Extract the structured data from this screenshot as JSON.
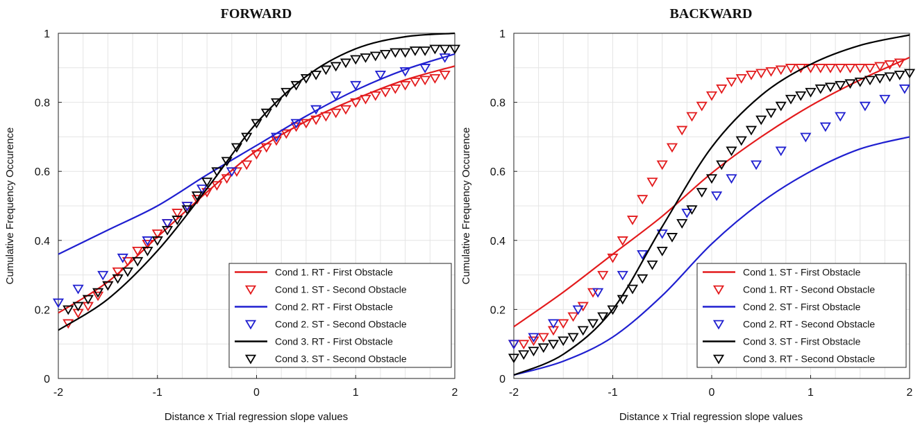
{
  "chart_data": [
    {
      "type": "line",
      "title": "FORWARD",
      "xlabel": "Distance x Trial regression slope values",
      "ylabel": "Cumulative Frequency Occurence",
      "xlim": [
        -2,
        2
      ],
      "ylim": [
        0,
        1
      ],
      "xticks": [
        -2,
        -1,
        0,
        1,
        2
      ],
      "yticks": [
        0,
        0.2,
        0.4,
        0.6,
        0.8,
        1
      ],
      "xtick_labels": [
        "-2",
        "-1",
        "0",
        "1",
        "2"
      ],
      "ytick_labels": [
        "0",
        "0.2",
        "0.4",
        "0.6",
        "0.8",
        "1"
      ],
      "grid": true,
      "legend_position": "bottom-right",
      "series": [
        {
          "name": "Cond 1. RT - First Obstacle",
          "kind": "line",
          "color": "#e31a1c",
          "x": [
            -2,
            -1.5,
            -1,
            -0.5,
            0,
            0.5,
            1,
            1.5,
            2
          ],
          "y": [
            0.19,
            0.28,
            0.41,
            0.54,
            0.66,
            0.745,
            0.81,
            0.865,
            0.905
          ]
        },
        {
          "name": "Cond 1. ST - Second Obstacle",
          "kind": "marker",
          "color": "#e31a1c",
          "x": [
            -1.9,
            -1.8,
            -1.7,
            -1.6,
            -1.5,
            -1.4,
            -1.3,
            -1.2,
            -1.1,
            -1.0,
            -0.9,
            -0.8,
            -0.7,
            -0.6,
            -0.5,
            -0.4,
            -0.3,
            -0.2,
            -0.1,
            0.0,
            0.1,
            0.2,
            0.3,
            0.4,
            0.5,
            0.6,
            0.7,
            0.8,
            0.9,
            1.0,
            1.1,
            1.2,
            1.3,
            1.4,
            1.5,
            1.6,
            1.7,
            1.8,
            1.9
          ],
          "y": [
            0.16,
            0.19,
            0.21,
            0.24,
            0.27,
            0.31,
            0.34,
            0.37,
            0.39,
            0.42,
            0.45,
            0.48,
            0.5,
            0.52,
            0.54,
            0.56,
            0.58,
            0.6,
            0.62,
            0.65,
            0.67,
            0.69,
            0.71,
            0.73,
            0.74,
            0.75,
            0.76,
            0.77,
            0.78,
            0.8,
            0.81,
            0.82,
            0.83,
            0.84,
            0.85,
            0.86,
            0.865,
            0.87,
            0.88
          ]
        },
        {
          "name": "Cond 2. RT - First Obstacle",
          "kind": "line",
          "color": "#1f1fd0",
          "x": [
            -2,
            -1.5,
            -1,
            -0.5,
            0,
            0.5,
            1,
            1.5,
            2
          ],
          "y": [
            0.36,
            0.43,
            0.5,
            0.59,
            0.675,
            0.76,
            0.835,
            0.895,
            0.94
          ]
        },
        {
          "name": "Cond 2. ST - Second Obstacle",
          "kind": "marker",
          "color": "#1f1fd0",
          "x": [
            -2.0,
            -1.8,
            -1.55,
            -1.35,
            -1.1,
            -0.9,
            -0.7,
            -0.55,
            -0.25,
            0.2,
            0.4,
            0.6,
            0.8,
            1.0,
            1.25,
            1.5,
            1.7,
            1.9
          ],
          "y": [
            0.22,
            0.26,
            0.3,
            0.35,
            0.4,
            0.45,
            0.5,
            0.55,
            0.6,
            0.7,
            0.74,
            0.78,
            0.82,
            0.85,
            0.88,
            0.89,
            0.9,
            0.93
          ]
        },
        {
          "name": "Cond 3. RT - First Obstacle",
          "kind": "line",
          "color": "#000000",
          "x": [
            -2,
            -1.5,
            -1,
            -0.5,
            0,
            0.5,
            1,
            1.5,
            2
          ],
          "y": [
            0.14,
            0.23,
            0.37,
            0.55,
            0.74,
            0.875,
            0.955,
            0.99,
            1.0
          ]
        },
        {
          "name": "Cond 3. ST - Second Obstacle",
          "kind": "marker",
          "color": "#000000",
          "x": [
            -1.9,
            -1.8,
            -1.7,
            -1.6,
            -1.5,
            -1.4,
            -1.3,
            -1.2,
            -1.1,
            -1.0,
            -0.9,
            -0.8,
            -0.7,
            -0.6,
            -0.5,
            -0.4,
            -0.3,
            -0.2,
            -0.1,
            0.0,
            0.1,
            0.2,
            0.3,
            0.4,
            0.5,
            0.6,
            0.7,
            0.8,
            0.9,
            1.0,
            1.1,
            1.2,
            1.3,
            1.4,
            1.5,
            1.6,
            1.7,
            1.8,
            1.9,
            2.0
          ],
          "y": [
            0.2,
            0.21,
            0.23,
            0.25,
            0.27,
            0.29,
            0.31,
            0.34,
            0.37,
            0.4,
            0.43,
            0.46,
            0.49,
            0.53,
            0.57,
            0.6,
            0.63,
            0.67,
            0.7,
            0.74,
            0.77,
            0.8,
            0.83,
            0.85,
            0.87,
            0.88,
            0.895,
            0.905,
            0.915,
            0.925,
            0.93,
            0.935,
            0.94,
            0.945,
            0.945,
            0.95,
            0.95,
            0.955,
            0.955,
            0.955
          ]
        }
      ]
    },
    {
      "type": "line",
      "title": "BACKWARD",
      "xlabel": "Distance x Trial regression slope values",
      "ylabel": "Cumulative Frequency Occurence",
      "xlim": [
        -2,
        2
      ],
      "ylim": [
        0,
        1
      ],
      "xticks": [
        -2,
        -1,
        0,
        1,
        2
      ],
      "yticks": [
        0,
        0.2,
        0.4,
        0.6,
        0.8,
        1
      ],
      "xtick_labels": [
        "-2",
        "-1",
        "0",
        "1",
        "2"
      ],
      "ytick_labels": [
        "0",
        "0.2",
        "0.4",
        "0.6",
        "0.8",
        "1"
      ],
      "grid": true,
      "legend_position": "bottom-right",
      "series": [
        {
          "name": "Cond 1. ST - First Obstacle",
          "kind": "line",
          "color": "#e31a1c",
          "x": [
            -2,
            -1.5,
            -1,
            -0.5,
            0,
            0.5,
            1,
            1.5,
            2
          ],
          "y": [
            0.15,
            0.25,
            0.36,
            0.47,
            0.595,
            0.7,
            0.79,
            0.865,
            0.93
          ]
        },
        {
          "name": "Cond 1. RT - Second Obstacle",
          "kind": "marker",
          "color": "#e31a1c",
          "x": [
            -2.0,
            -1.9,
            -1.8,
            -1.7,
            -1.6,
            -1.5,
            -1.4,
            -1.3,
            -1.2,
            -1.1,
            -1.0,
            -0.9,
            -0.8,
            -0.7,
            -0.6,
            -0.5,
            -0.4,
            -0.3,
            -0.2,
            -0.1,
            0.0,
            0.1,
            0.2,
            0.3,
            0.4,
            0.5,
            0.6,
            0.7,
            0.8,
            0.9,
            1.0,
            1.1,
            1.2,
            1.3,
            1.4,
            1.5,
            1.6,
            1.7,
            1.8,
            1.9
          ],
          "y": [
            0.1,
            0.1,
            0.11,
            0.12,
            0.14,
            0.16,
            0.18,
            0.21,
            0.25,
            0.3,
            0.35,
            0.4,
            0.46,
            0.52,
            0.57,
            0.62,
            0.67,
            0.72,
            0.76,
            0.79,
            0.82,
            0.84,
            0.86,
            0.87,
            0.88,
            0.885,
            0.89,
            0.895,
            0.9,
            0.9,
            0.9,
            0.9,
            0.9,
            0.9,
            0.9,
            0.9,
            0.9,
            0.905,
            0.91,
            0.915
          ]
        },
        {
          "name": "Cond 2. ST - First Obstacle",
          "kind": "line",
          "color": "#1f1fd0",
          "x": [
            -2,
            -1.5,
            -1,
            -0.5,
            0,
            0.5,
            1,
            1.5,
            2
          ],
          "y": [
            0.01,
            0.05,
            0.12,
            0.24,
            0.39,
            0.51,
            0.6,
            0.665,
            0.7
          ]
        },
        {
          "name": "Cond 2. RT - Second Obstacle",
          "kind": "marker",
          "color": "#1f1fd0",
          "x": [
            -2.0,
            -1.8,
            -1.6,
            -1.35,
            -1.15,
            -0.9,
            -0.7,
            -0.5,
            -0.25,
            0.05,
            0.2,
            0.45,
            0.7,
            0.95,
            1.15,
            1.3,
            1.55,
            1.75,
            1.95
          ],
          "y": [
            0.1,
            0.12,
            0.16,
            0.2,
            0.25,
            0.3,
            0.36,
            0.42,
            0.48,
            0.53,
            0.58,
            0.62,
            0.66,
            0.7,
            0.73,
            0.76,
            0.79,
            0.81,
            0.84
          ]
        },
        {
          "name": "Cond 3. ST - First Obstacle",
          "kind": "line",
          "color": "#000000",
          "x": [
            -2,
            -1.5,
            -1,
            -0.5,
            0,
            0.5,
            1,
            1.5,
            2
          ],
          "y": [
            0.01,
            0.07,
            0.2,
            0.44,
            0.67,
            0.82,
            0.91,
            0.965,
            0.995
          ]
        },
        {
          "name": "Cond 3. RT - Second Obstacle",
          "kind": "marker",
          "color": "#000000",
          "x": [
            -2.0,
            -1.9,
            -1.8,
            -1.7,
            -1.6,
            -1.5,
            -1.4,
            -1.3,
            -1.2,
            -1.1,
            -1.0,
            -0.9,
            -0.8,
            -0.7,
            -0.6,
            -0.5,
            -0.4,
            -0.3,
            -0.2,
            -0.1,
            0.0,
            0.1,
            0.2,
            0.3,
            0.4,
            0.5,
            0.6,
            0.7,
            0.8,
            0.9,
            1.0,
            1.1,
            1.2,
            1.3,
            1.4,
            1.5,
            1.6,
            1.7,
            1.8,
            1.9,
            2.0
          ],
          "y": [
            0.06,
            0.07,
            0.08,
            0.09,
            0.1,
            0.11,
            0.12,
            0.14,
            0.16,
            0.18,
            0.2,
            0.23,
            0.26,
            0.29,
            0.33,
            0.37,
            0.41,
            0.45,
            0.49,
            0.54,
            0.58,
            0.62,
            0.66,
            0.69,
            0.72,
            0.75,
            0.77,
            0.79,
            0.81,
            0.82,
            0.83,
            0.84,
            0.845,
            0.85,
            0.855,
            0.86,
            0.865,
            0.87,
            0.875,
            0.88,
            0.885
          ]
        }
      ]
    }
  ]
}
